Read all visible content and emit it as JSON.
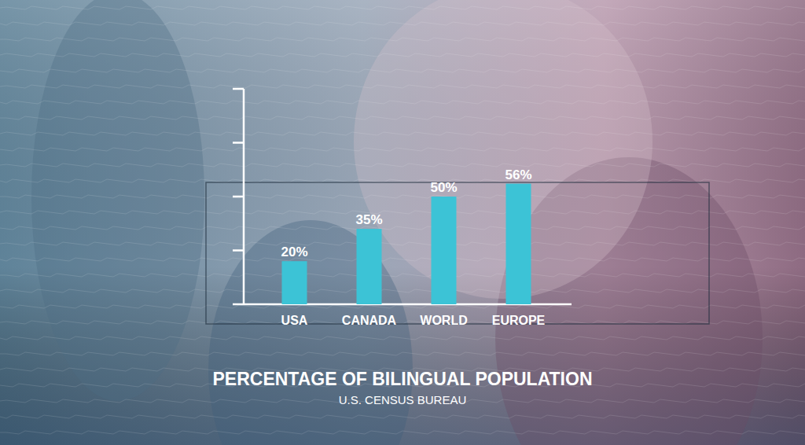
{
  "chart_data": {
    "type": "bar",
    "title": "PERCENTAGE OF BILINGUAL POPULATION",
    "subtitle": "U.S. CENSUS BUREAU",
    "categories": [
      "USA",
      "CANADA",
      "WORLD",
      "EUROPE"
    ],
    "values": [
      20,
      35,
      50,
      56
    ],
    "value_labels": [
      "20%",
      "35%",
      "50%",
      "56%"
    ],
    "color": "#3cc3d6",
    "ylim": [
      0,
      100
    ],
    "yticks": [
      0,
      25,
      50,
      75,
      100
    ],
    "grid": false,
    "data_labels": true,
    "tick_labels": "x"
  }
}
